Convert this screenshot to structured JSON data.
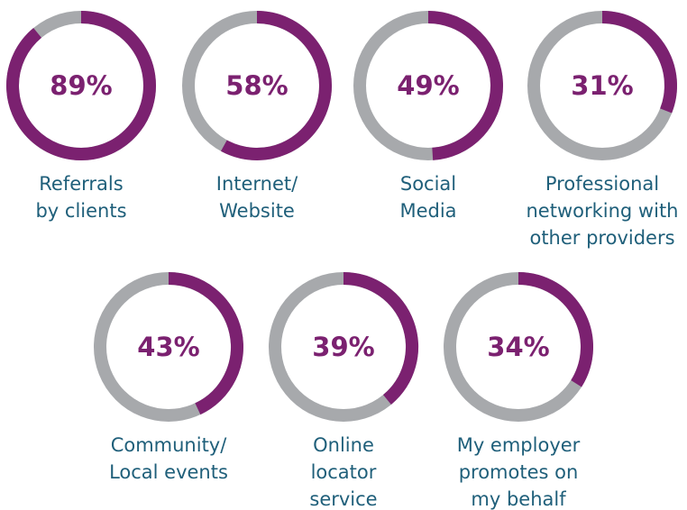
{
  "chart_data": [
    {
      "type": "donut",
      "value": 89,
      "value_label": "89%",
      "label": [
        "Referrals",
        "by clients"
      ],
      "color": "#7b2170",
      "track_color": "#a7a9ac"
    },
    {
      "type": "donut",
      "value": 58,
      "value_label": "58%",
      "label": [
        "Internet/",
        "Website"
      ],
      "color": "#7b2170",
      "track_color": "#a7a9ac"
    },
    {
      "type": "donut",
      "value": 49,
      "value_label": "49%",
      "label": [
        "Social",
        "Media"
      ],
      "color": "#7b2170",
      "track_color": "#a7a9ac"
    },
    {
      "type": "donut",
      "value": 31,
      "value_label": "31%",
      "label": [
        "Professional",
        "networking with",
        "other providers"
      ],
      "color": "#7b2170",
      "track_color": "#a7a9ac"
    },
    {
      "type": "donut",
      "value": 43,
      "value_label": "43%",
      "label": [
        "Community/",
        "Local events"
      ],
      "color": "#7b2170",
      "track_color": "#a7a9ac"
    },
    {
      "type": "donut",
      "value": 39,
      "value_label": "39%",
      "label": [
        "Online",
        "locator",
        "service"
      ],
      "color": "#7b2170",
      "track_color": "#a7a9ac"
    },
    {
      "type": "donut",
      "value": 34,
      "value_label": "34%",
      "label": [
        "My employer",
        "promotes on",
        "my behalf"
      ],
      "color": "#7b2170",
      "track_color": "#a7a9ac"
    }
  ]
}
